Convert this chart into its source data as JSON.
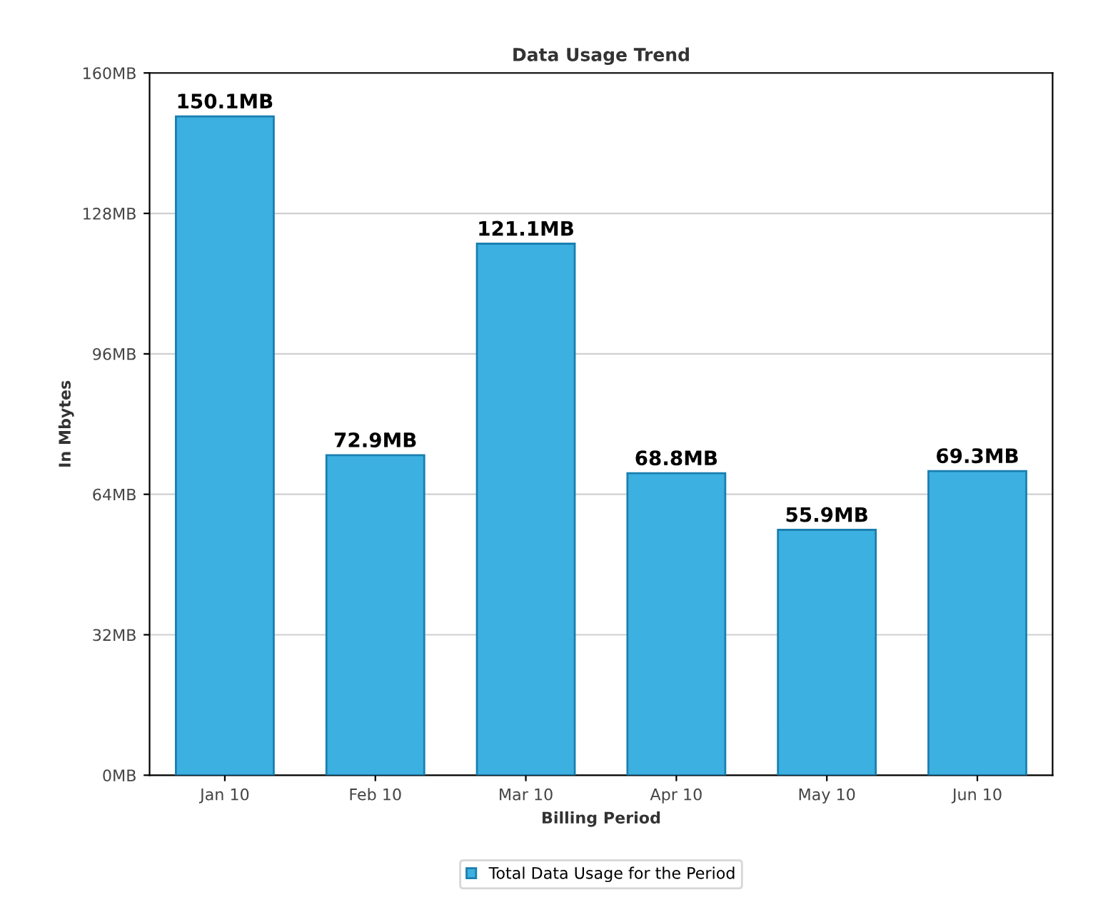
{
  "chart_data": {
    "type": "bar",
    "title": "Data Usage Trend",
    "xlabel": "Billing Period",
    "ylabel": "In Mbytes",
    "categories": [
      "Jan 10",
      "Feb 10",
      "Mar 10",
      "Apr 10",
      "May 10",
      "Jun 10"
    ],
    "series": [
      {
        "name": "Total Data Usage for the Period",
        "color": "#3cb0e0",
        "values": [
          150.1,
          72.9,
          121.1,
          68.8,
          55.9,
          69.3
        ],
        "value_labels": [
          "150.1MB",
          "72.9MB",
          "121.1MB",
          "68.8MB",
          "55.9MB",
          "69.3MB"
        ]
      }
    ],
    "ylim": [
      0,
      160
    ],
    "yticks": [
      {
        "value": 0,
        "label": "0MB"
      },
      {
        "value": 32,
        "label": "32MB"
      },
      {
        "value": 64,
        "label": "64MB"
      },
      {
        "value": 96,
        "label": "96MB"
      },
      {
        "value": 128,
        "label": "128MB"
      },
      {
        "value": 160,
        "label": "160MB"
      }
    ],
    "grid": "y",
    "legend": "bottom"
  }
}
